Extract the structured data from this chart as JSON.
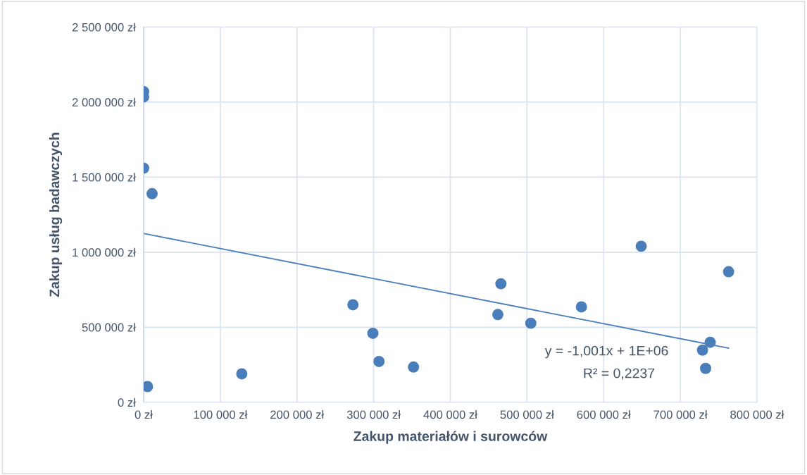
{
  "chart_data": {
    "type": "scatter",
    "xlabel": "Zakup materiałów i surowców",
    "ylabel": "Zakup usług badawczych",
    "xlim": [
      0,
      800000
    ],
    "ylim": [
      0,
      2500000
    ],
    "xticks": [
      {
        "value": 0,
        "label": "0 zł"
      },
      {
        "value": 100000,
        "label": "100 000 zł"
      },
      {
        "value": 200000,
        "label": "200 000 zł"
      },
      {
        "value": 300000,
        "label": "300 000 zł"
      },
      {
        "value": 400000,
        "label": "400 000 zł"
      },
      {
        "value": 500000,
        "label": "500 000 zł"
      },
      {
        "value": 600000,
        "label": "600 000 zł"
      },
      {
        "value": 700000,
        "label": "700 000 zł"
      },
      {
        "value": 800000,
        "label": "800 000 zł"
      }
    ],
    "yticks": [
      {
        "value": 0,
        "label": "0 zł"
      },
      {
        "value": 500000,
        "label": "500 000 zł"
      },
      {
        "value": 1000000,
        "label": "1 000 000 zł"
      },
      {
        "value": 1500000,
        "label": "1 500 000 zł"
      },
      {
        "value": 2000000,
        "label": "2 000 000 zł"
      },
      {
        "value": 2500000,
        "label": "2 500 000 zł"
      }
    ],
    "grid": true,
    "series": [
      {
        "marker": "circle",
        "color": "#4a7ebb",
        "x": [
          0,
          0,
          0,
          11000,
          5000,
          128000,
          273000,
          299000,
          307000,
          352000,
          462000,
          466000,
          505000,
          571000,
          649000,
          729000,
          733000,
          739000,
          763000
        ],
        "values": [
          2070000,
          2035000,
          1560000,
          1390000,
          105000,
          190000,
          650000,
          460000,
          272000,
          235000,
          585000,
          790000,
          527000,
          636000,
          1040000,
          348000,
          226000,
          400000,
          870000
        ]
      },
      {
        "type": "line",
        "color": "#4a7ebb",
        "x": [
          0,
          763000
        ],
        "values": [
          1125000,
          361000
        ]
      }
    ],
    "annotations": [
      "y = -1,001x + 1E+06",
      "R² = 0,2237"
    ]
  }
}
